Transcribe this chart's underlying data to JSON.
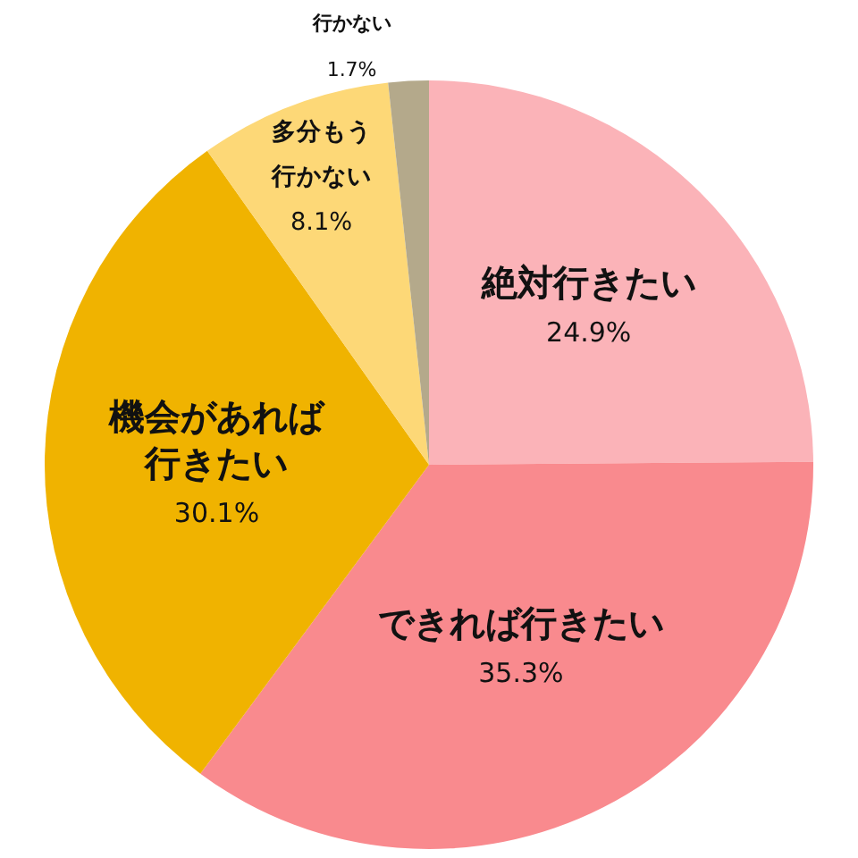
{
  "chart_data": {
    "type": "pie",
    "categories": [
      "絶対行きたい",
      "できれば行きたい",
      "機会があれば行きたい",
      "多分もう行かない",
      "行かない"
    ],
    "values": [
      24.9,
      35.3,
      30.1,
      8.1,
      1.7
    ],
    "value_labels": [
      "24.9%",
      "35.3%",
      "30.1%",
      "8.1%",
      "1.7%"
    ],
    "colors": [
      "#fbb3b8",
      "#f98a8e",
      "#f0b300",
      "#fdd877",
      "#b4a98b"
    ]
  }
}
